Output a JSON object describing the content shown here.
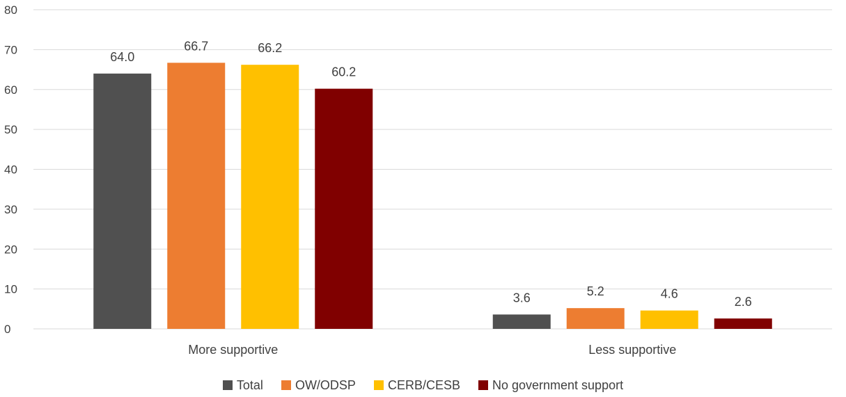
{
  "chart_data": {
    "type": "bar",
    "categories": [
      "More supportive",
      "Less supportive"
    ],
    "series": [
      {
        "name": "Total",
        "values": [
          64.0,
          3.6
        ],
        "color": "#505050"
      },
      {
        "name": "OW/ODSP",
        "values": [
          66.7,
          5.2
        ],
        "color": "#ED7D31"
      },
      {
        "name": "CERB/CESB",
        "values": [
          66.2,
          4.6
        ],
        "color": "#FFC000"
      },
      {
        "name": "No government support",
        "values": [
          60.2,
          2.6
        ],
        "color": "#800000"
      }
    ],
    "ylim": [
      0,
      80
    ],
    "yticks": [
      "0",
      "10",
      "20",
      "30",
      "40",
      "50",
      "60",
      "70",
      "80"
    ],
    "grid": true,
    "legend_position": "bottom"
  }
}
